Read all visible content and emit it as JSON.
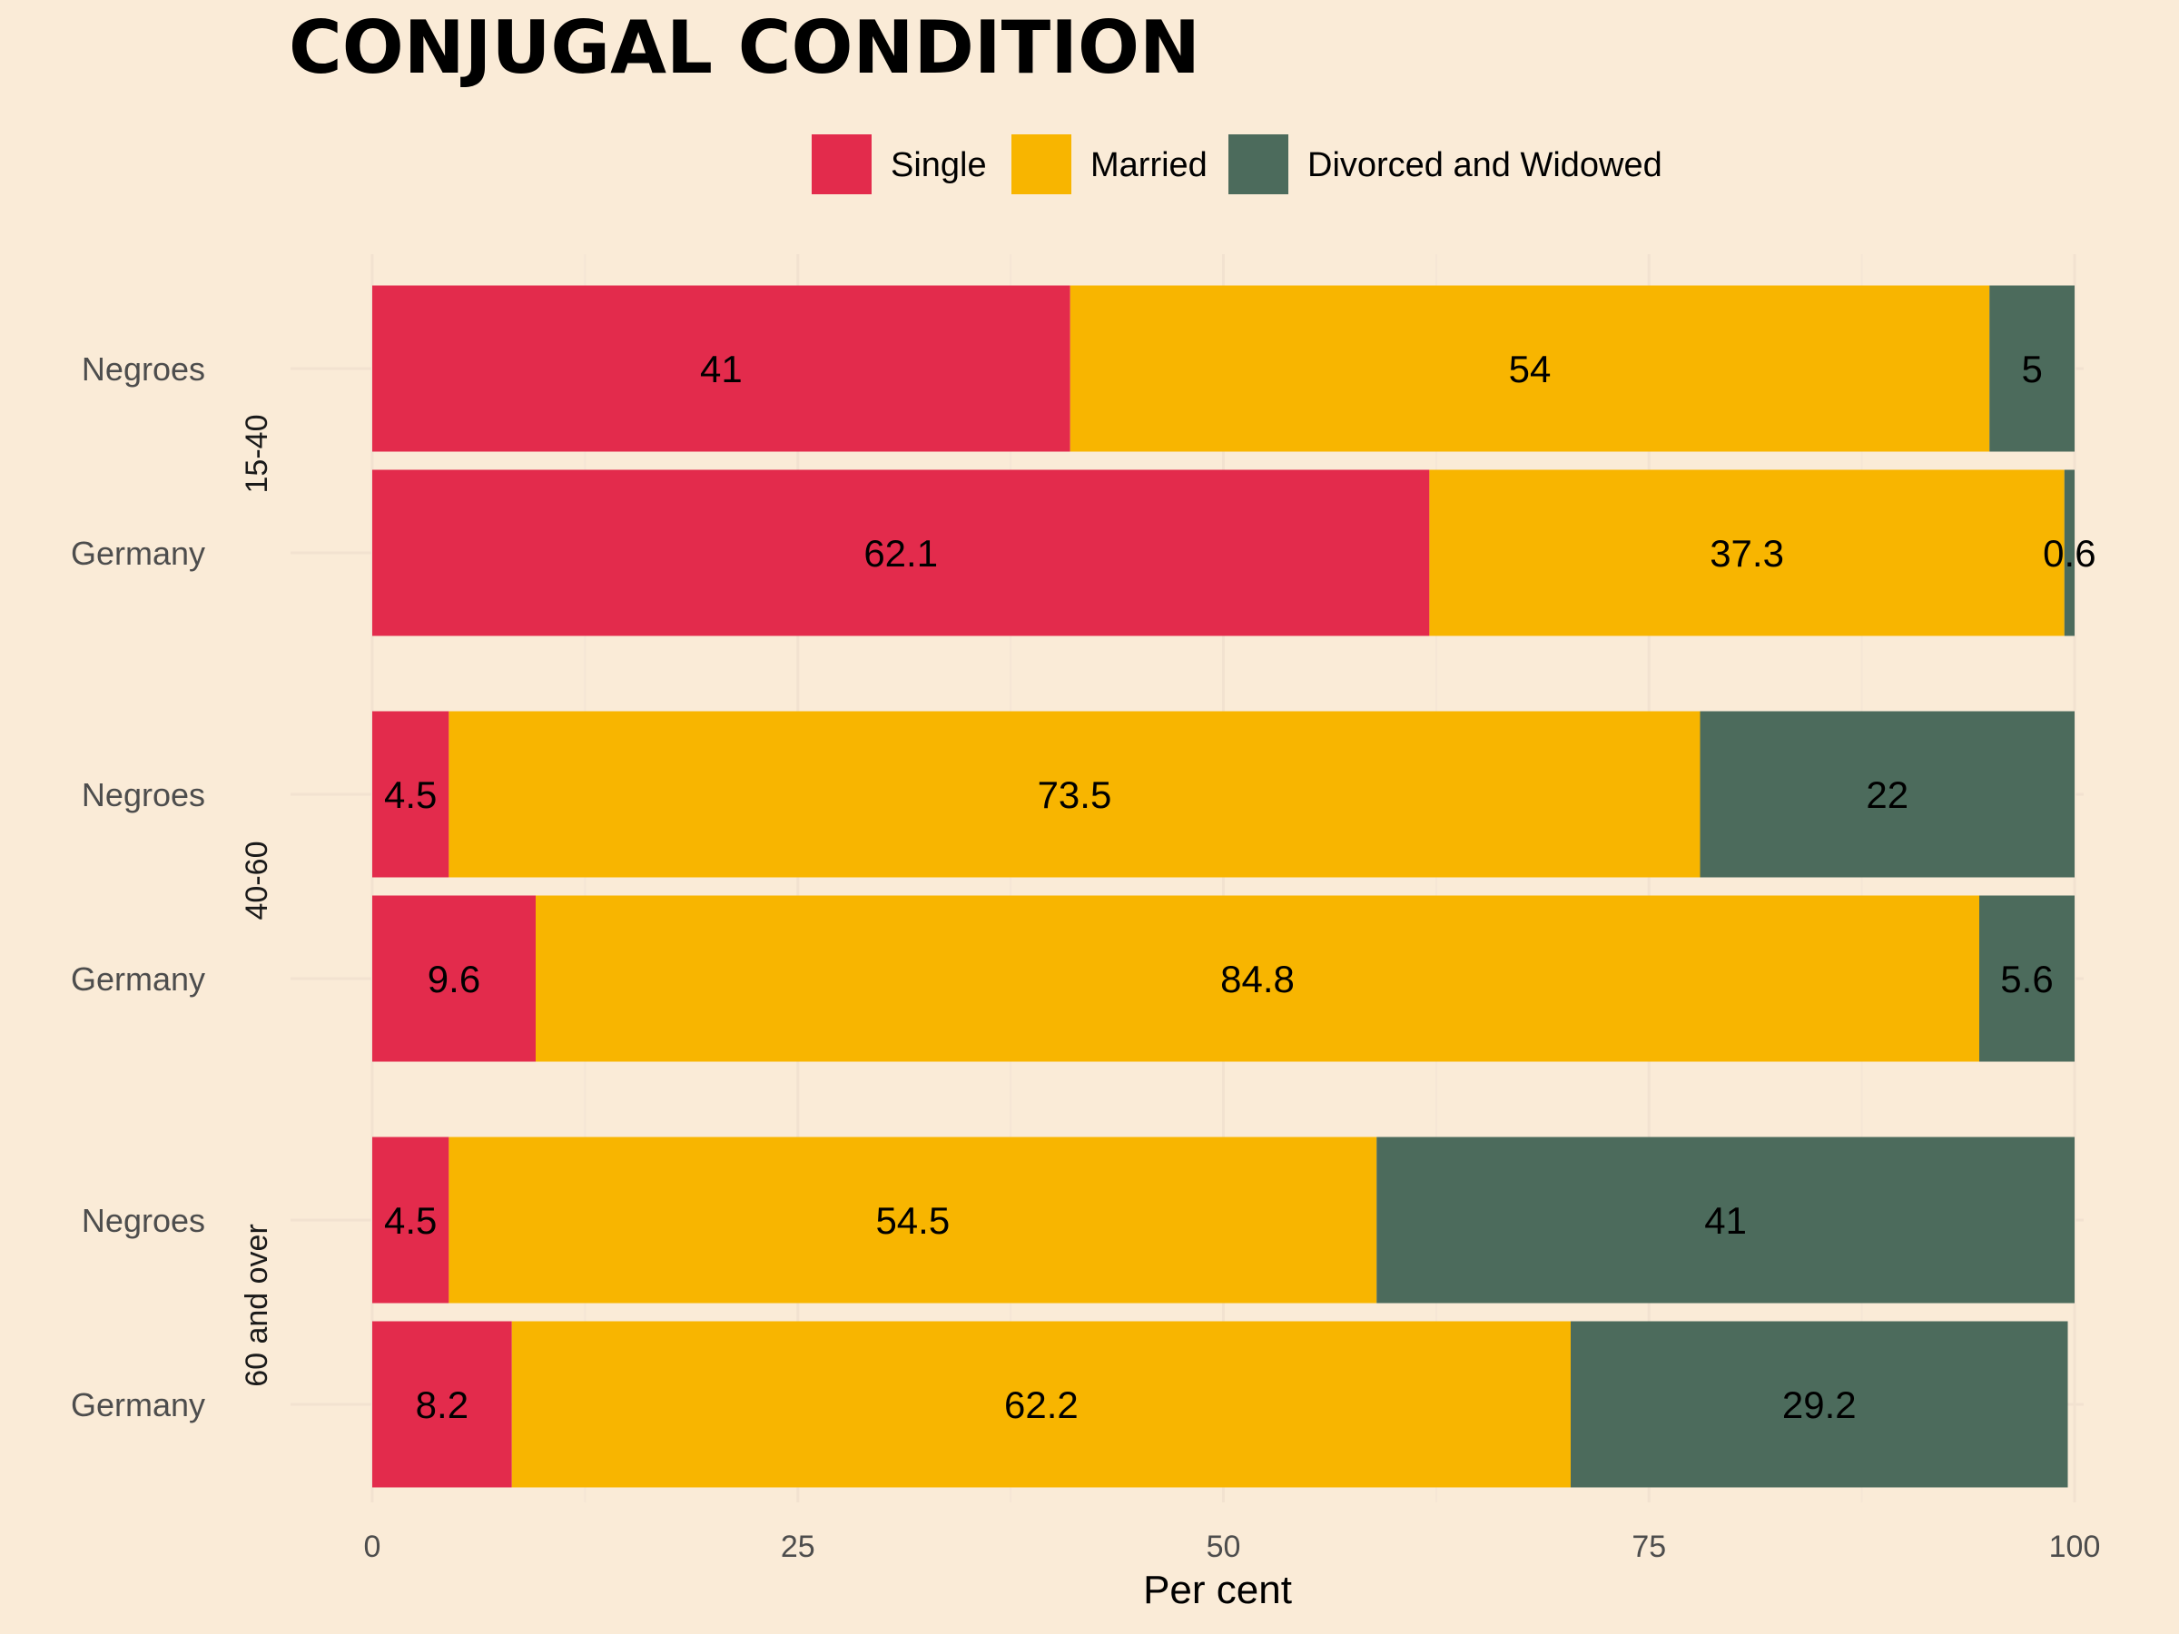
{
  "chart_data": {
    "type": "bar",
    "orientation": "horizontal",
    "stacked": true,
    "title": "CONJUGAL CONDITION",
    "xlabel": "Per cent",
    "xlim": [
      0,
      100
    ],
    "x_ticks": [
      0,
      25,
      50,
      75,
      100
    ],
    "grid": true,
    "legend_position": "top",
    "series": [
      {
        "name": "Single",
        "color": "#E32B4C"
      },
      {
        "name": "Married",
        "color": "#F8B500"
      },
      {
        "name": "Divorced and Widowed",
        "color": "#4C6B5C"
      }
    ],
    "groups": [
      {
        "facet": "15-40",
        "rows": [
          {
            "category": "Negroes",
            "values": [
              41,
              54,
              5
            ]
          },
          {
            "category": "Germany",
            "values": [
              62.1,
              37.3,
              0.6
            ]
          }
        ]
      },
      {
        "facet": "40-60",
        "rows": [
          {
            "category": "Negroes",
            "values": [
              4.5,
              73.5,
              22
            ]
          },
          {
            "category": "Germany",
            "values": [
              9.6,
              84.8,
              5.6
            ]
          }
        ]
      },
      {
        "facet": "60 and over",
        "rows": [
          {
            "category": "Negroes",
            "values": [
              4.5,
              54.5,
              41
            ]
          },
          {
            "category": "Germany",
            "values": [
              8.2,
              62.2,
              29.2
            ]
          }
        ]
      }
    ]
  }
}
